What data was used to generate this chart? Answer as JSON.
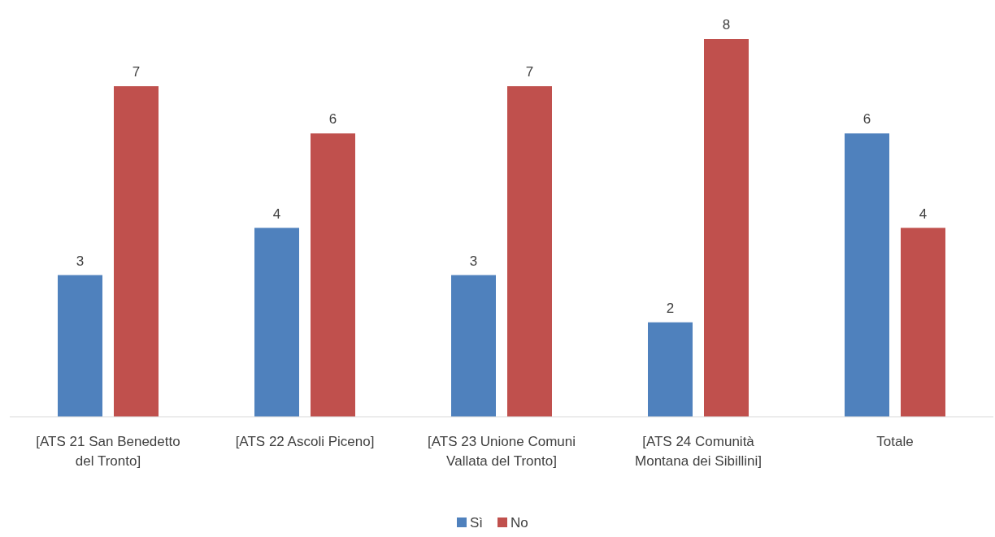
{
  "chart_data": {
    "type": "bar",
    "categories": [
      "[ATS 21 San Benedetto del Tronto]",
      "[ATS 22 Ascoli Piceno]",
      "[ATS 23 Unione Comuni Vallata del Tronto]",
      "[ATS 24 Comunità Montana dei Sibillini]",
      "Totale"
    ],
    "series": [
      {
        "name": "Sì",
        "color": "#4f81bd",
        "values": [
          3,
          4,
          3,
          2,
          6
        ]
      },
      {
        "name": "No",
        "color": "#c0504d",
        "values": [
          7,
          6,
          7,
          8,
          4
        ]
      }
    ],
    "data_labels": true,
    "legend": "bottom"
  }
}
